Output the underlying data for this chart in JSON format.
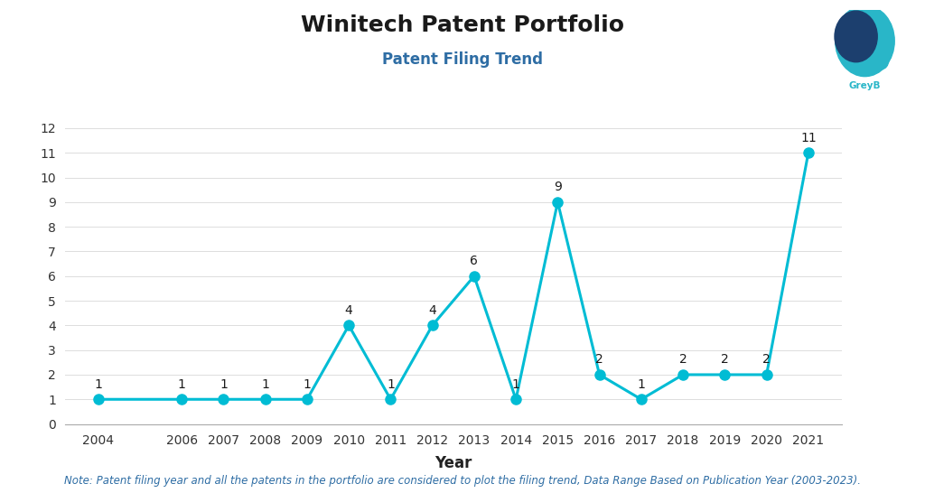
{
  "title": "Winitech Patent Portfolio",
  "subtitle": "Patent Filing Trend",
  "xlabel": "Year",
  "years": [
    2004,
    2006,
    2007,
    2008,
    2009,
    2010,
    2011,
    2012,
    2013,
    2014,
    2015,
    2016,
    2017,
    2018,
    2019,
    2020,
    2021
  ],
  "values": [
    1,
    1,
    1,
    1,
    1,
    4,
    1,
    4,
    6,
    1,
    9,
    2,
    1,
    2,
    2,
    2,
    11
  ],
  "line_color": "#00BCD4",
  "marker_color": "#00BCD4",
  "title_color": "#1a1a1a",
  "subtitle_color": "#2e6da4",
  "note_color": "#2e6da4",
  "background_color": "#ffffff",
  "ylim": [
    0,
    12
  ],
  "yticks": [
    0,
    1,
    2,
    3,
    4,
    5,
    6,
    7,
    8,
    9,
    10,
    11,
    12
  ],
  "note": "Note: Patent filing year and all the patents in the portfolio are considered to plot the filing trend, Data Range Based on Publication Year (2003-2023).",
  "title_fontsize": 18,
  "subtitle_fontsize": 12,
  "xlabel_fontsize": 12,
  "tick_fontsize": 10,
  "note_fontsize": 8.5,
  "label_fontsize": 10
}
